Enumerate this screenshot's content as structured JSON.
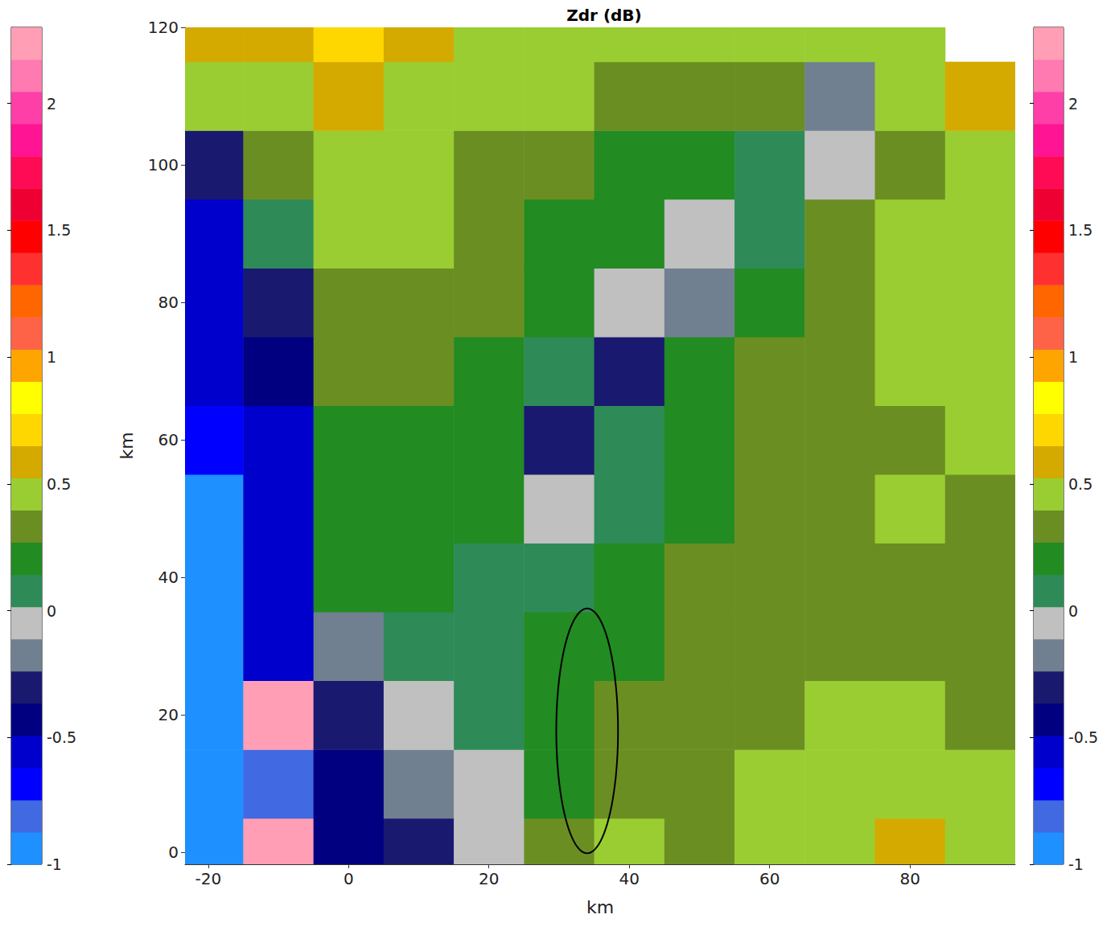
{
  "chart_data": {
    "type": "heatmap",
    "title": "Zdr (dB)",
    "x_label": "km",
    "y_label": "km",
    "xlim": [
      -23.3,
      95
    ],
    "ylim": [
      -1.7,
      120
    ],
    "xticks": [
      -20,
      0,
      20,
      40,
      60,
      80
    ],
    "yticks": [
      0,
      20,
      40,
      60,
      80,
      100,
      120
    ],
    "grid": false,
    "x": [
      -20,
      -10,
      0,
      10,
      20,
      30,
      40,
      50,
      60,
      70,
      80,
      90
    ],
    "y": [
      0,
      10,
      20,
      30,
      40,
      50,
      60,
      70,
      80,
      90,
      100,
      110,
      120
    ],
    "values": [
      [
        -0.95,
        2.2,
        -0.4,
        -0.3,
        0.0,
        0.3,
        0.5,
        0.3,
        0.5,
        0.5,
        0.6,
        0.4
      ],
      [
        -0.9,
        -0.8,
        -0.4,
        -0.2,
        0.0,
        0.2,
        0.3,
        0.3,
        0.4,
        0.5,
        0.5,
        0.4
      ],
      [
        -0.9,
        2.2,
        -0.3,
        -0.1,
        0.05,
        0.2,
        0.3,
        0.3,
        0.35,
        0.4,
        0.4,
        0.35
      ],
      [
        -0.95,
        -0.6,
        -0.2,
        0.1,
        0.1,
        0.15,
        0.25,
        0.3,
        0.3,
        0.35,
        0.35,
        0.3
      ],
      [
        -0.9,
        -0.6,
        0.15,
        0.2,
        0.1,
        0.05,
        0.2,
        0.3,
        0.3,
        0.3,
        0.35,
        0.35
      ],
      [
        -0.9,
        -0.5,
        0.2,
        0.25,
        0.15,
        -0.1,
        0.1,
        0.25,
        0.3,
        0.35,
        0.4,
        0.35
      ],
      [
        -0.7,
        -0.55,
        0.25,
        0.25,
        0.2,
        -0.3,
        0.05,
        0.25,
        0.3,
        0.35,
        0.35,
        0.4
      ],
      [
        -0.6,
        -0.4,
        0.3,
        0.3,
        0.25,
        0.1,
        -0.3,
        0.15,
        0.3,
        0.35,
        0.4,
        0.4
      ],
      [
        -0.6,
        -0.3,
        0.35,
        0.35,
        0.3,
        0.2,
        -0.1,
        -0.2,
        0.25,
        0.35,
        0.4,
        0.45
      ],
      [
        -0.5,
        0.1,
        0.4,
        0.4,
        0.3,
        0.2,
        0.15,
        -0.1,
        0.1,
        0.3,
        0.4,
        0.5
      ],
      [
        -0.3,
        0.3,
        0.45,
        0.4,
        0.35,
        0.3,
        0.2,
        0.2,
        0.1,
        -0.1,
        0.3,
        0.5
      ],
      [
        0.4,
        0.5,
        0.6,
        0.5,
        0.45,
        0.4,
        0.35,
        0.3,
        0.3,
        -0.2,
        0.5,
        0.6
      ],
      [
        0.6,
        0.6,
        0.7,
        0.6,
        0.5,
        0.45,
        0.4,
        0.4,
        0.4,
        0.4,
        0.5,
        null
      ]
    ],
    "colorbar": {
      "range": [
        -1,
        2.3
      ],
      "ticks": [
        -1,
        -0.5,
        0,
        0.5,
        1,
        1.5,
        2
      ],
      "colors": [
        "#1e90ff",
        "#4169e1",
        "#0000ff",
        "#0000cd",
        "#000080",
        "#191970",
        "#708090",
        "#c0c0c0",
        "#2e8b57",
        "#228b22",
        "#6b8e23",
        "#9acd32",
        "#d4aa00",
        "#ffd700",
        "#ffff00",
        "#ffa500",
        "#ff6347",
        "#ff6600",
        "#ff3030",
        "#ff0000",
        "#ee0033",
        "#ff0a55",
        "#ff1493",
        "#ff3fa8",
        "#ff7ab0",
        "#ff9eb5"
      ]
    },
    "annotations": [
      {
        "shape": "ellipse",
        "x": 34,
        "y": 17.7,
        "rx": 4.4,
        "ry": 17.8
      }
    ]
  }
}
